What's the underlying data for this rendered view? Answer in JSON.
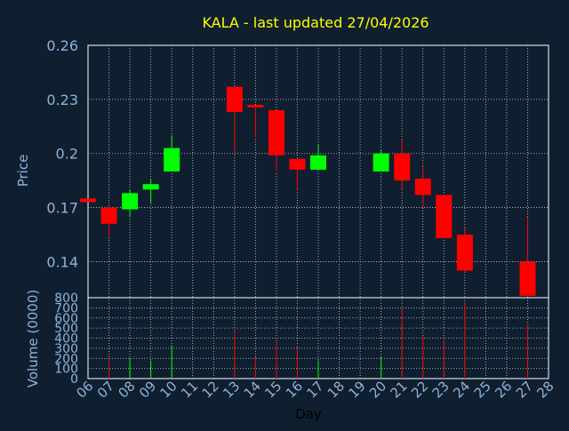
{
  "colors": {
    "background": "#0f1f30",
    "title": "#ffff00",
    "axis_text": "#8fb3d9",
    "grid": "#d0d0d0",
    "up": "#00ff00",
    "down": "#ff0000"
  },
  "chart_data": {
    "type": "candlestick",
    "title": "KALA - last updated 27/04/2026",
    "xlabel": "Day",
    "x_ticks": [
      "06",
      "07",
      "08",
      "09",
      "10",
      "11",
      "12",
      "13",
      "14",
      "15",
      "16",
      "17",
      "18",
      "19",
      "20",
      "21",
      "22",
      "23",
      "24",
      "25",
      "26",
      "27",
      "28"
    ],
    "price_panel": {
      "ylabel": "Price",
      "ylim": [
        0.12,
        0.26
      ],
      "y_ticks": [
        "0.26",
        "0.23",
        "0.2",
        "0.17",
        "0.14"
      ],
      "y_tick_values": [
        0.26,
        0.23,
        0.2,
        0.17,
        0.14
      ],
      "grid": true,
      "candles": [
        {
          "day": "06",
          "open": 0.175,
          "high": 0.175,
          "low": 0.173,
          "close": 0.173
        },
        {
          "day": "07",
          "open": 0.17,
          "high": 0.17,
          "low": 0.154,
          "close": 0.161
        },
        {
          "day": "08",
          "open": 0.169,
          "high": 0.18,
          "low": 0.165,
          "close": 0.178
        },
        {
          "day": "09",
          "open": 0.18,
          "high": 0.186,
          "low": 0.172,
          "close": 0.183
        },
        {
          "day": "10",
          "open": 0.19,
          "high": 0.21,
          "low": 0.19,
          "close": 0.203
        },
        {
          "day": "13",
          "open": 0.237,
          "high": 0.237,
          "low": 0.2,
          "close": 0.223
        },
        {
          "day": "14",
          "open": 0.227,
          "high": 0.227,
          "low": 0.209,
          "close": 0.226
        },
        {
          "day": "15",
          "open": 0.224,
          "high": 0.224,
          "low": 0.19,
          "close": 0.199
        },
        {
          "day": "16",
          "open": 0.197,
          "high": 0.197,
          "low": 0.18,
          "close": 0.191
        },
        {
          "day": "17",
          "open": 0.191,
          "high": 0.205,
          "low": 0.191,
          "close": 0.199
        },
        {
          "day": "20",
          "open": 0.19,
          "high": 0.202,
          "low": 0.19,
          "close": 0.2
        },
        {
          "day": "21",
          "open": 0.2,
          "high": 0.208,
          "low": 0.18,
          "close": 0.185
        },
        {
          "day": "22",
          "open": 0.186,
          "high": 0.193,
          "low": 0.17,
          "close": 0.177
        },
        {
          "day": "23",
          "open": 0.177,
          "high": 0.177,
          "low": 0.153,
          "close": 0.153
        },
        {
          "day": "24",
          "open": 0.155,
          "high": 0.159,
          "low": 0.134,
          "close": 0.135
        },
        {
          "day": "27",
          "open": 0.14,
          "high": 0.165,
          "low": 0.12,
          "close": 0.121
        }
      ]
    },
    "volume_panel": {
      "ylabel": "Volume (0000)",
      "ylim": [
        0,
        800
      ],
      "y_ticks": [
        "800",
        "700",
        "600",
        "500",
        "400",
        "300",
        "200",
        "100",
        "0"
      ],
      "y_tick_values": [
        800,
        700,
        600,
        500,
        400,
        300,
        200,
        100,
        0
      ],
      "bars": [
        {
          "day": "07",
          "value": 200,
          "dir": "down"
        },
        {
          "day": "08",
          "value": 200,
          "dir": "up"
        },
        {
          "day": "09",
          "value": 180,
          "dir": "up"
        },
        {
          "day": "10",
          "value": 330,
          "dir": "up"
        },
        {
          "day": "13",
          "value": 470,
          "dir": "down"
        },
        {
          "day": "14",
          "value": 210,
          "dir": "down"
        },
        {
          "day": "15",
          "value": 360,
          "dir": "down"
        },
        {
          "day": "16",
          "value": 320,
          "dir": "down"
        },
        {
          "day": "17",
          "value": 180,
          "dir": "up"
        },
        {
          "day": "20",
          "value": 210,
          "dir": "up"
        },
        {
          "day": "21",
          "value": 690,
          "dir": "down"
        },
        {
          "day": "22",
          "value": 420,
          "dir": "down"
        },
        {
          "day": "23",
          "value": 380,
          "dir": "down"
        },
        {
          "day": "24",
          "value": 750,
          "dir": "down"
        },
        {
          "day": "27",
          "value": 540,
          "dir": "down"
        }
      ]
    }
  }
}
